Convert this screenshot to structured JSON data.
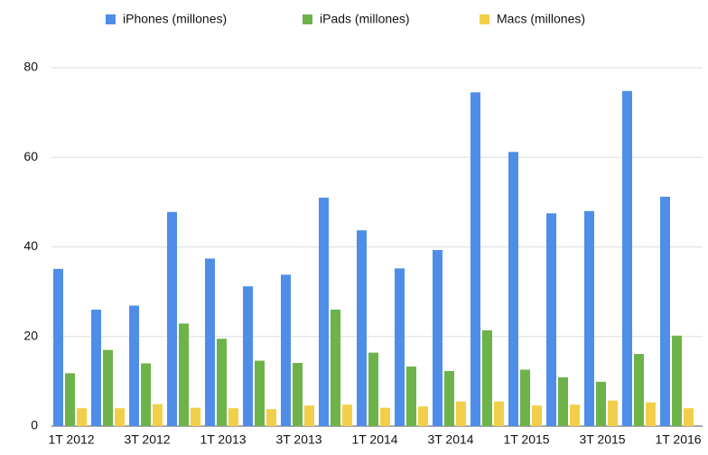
{
  "chart_data": {
    "type": "bar",
    "categories": [
      "1T 2012",
      null,
      "3T 2012",
      null,
      "1T 2013",
      null,
      "3T 2013",
      null,
      "1T 2014",
      null,
      "3T 2014",
      null,
      "1T 2015",
      null,
      "3T 2015",
      null,
      "1T 2016"
    ],
    "series": [
      {
        "name": "iPhones (millones)",
        "color": "#4f8ee8",
        "values": [
          35.1,
          26.0,
          26.9,
          47.8,
          37.4,
          31.2,
          33.8,
          51.0,
          43.7,
          35.2,
          39.3,
          74.5,
          61.2,
          47.5,
          48.0,
          74.8,
          51.2
        ]
      },
      {
        "name": "iPads (millones)",
        "color": "#6db34a",
        "values": [
          11.8,
          17.0,
          14.0,
          22.9,
          19.5,
          14.6,
          14.1,
          26.0,
          16.4,
          13.3,
          12.3,
          21.4,
          12.6,
          10.9,
          9.9,
          16.1,
          20.2
        ]
      },
      {
        "name": "Macs (millones)",
        "color": "#f2cf4a",
        "values": [
          4.0,
          4.0,
          4.9,
          4.1,
          4.0,
          3.8,
          4.6,
          4.8,
          4.1,
          4.4,
          5.5,
          5.5,
          4.6,
          4.8,
          5.7,
          5.3,
          4.0
        ]
      }
    ],
    "ylim": [
      0,
      80
    ],
    "yticks": [
      0,
      20,
      40,
      60,
      80
    ],
    "grid": true
  }
}
